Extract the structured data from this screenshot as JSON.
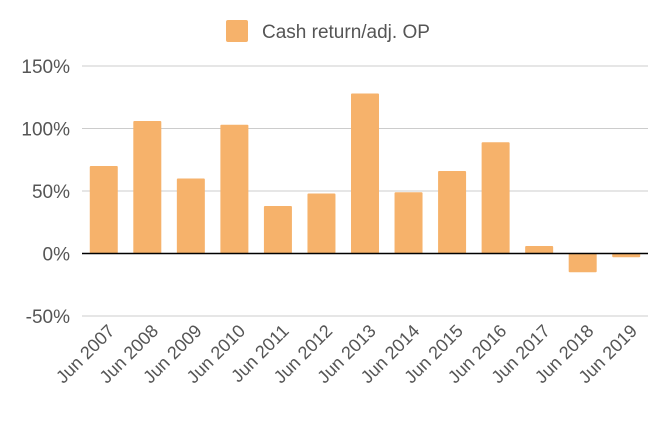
{
  "chart_data": {
    "type": "bar",
    "categories": [
      "Jun 2007",
      "Jun 2008",
      "Jun 2009",
      "Jun 2010",
      "Jun 2011",
      "Jun 2012",
      "Jun 2013",
      "Jun 2014",
      "Jun 2015",
      "Jun 2016",
      "Jun 2017",
      "Jun 2018",
      "Jun 2019"
    ],
    "series": [
      {
        "name": "Cash return/adj. OP",
        "values": [
          70,
          106,
          60,
          103,
          38,
          48,
          128,
          49,
          66,
          89,
          6,
          -15,
          -3
        ],
        "color": "#f6b26b"
      }
    ],
    "ylim": [
      -50,
      150
    ],
    "yticks": [
      -50,
      0,
      50,
      100,
      150
    ],
    "ytick_labels": [
      "-50%",
      "0%",
      "50%",
      "100%",
      "150%"
    ],
    "y_unit": "%",
    "grid": true,
    "legend_position": "top-center",
    "colors": {
      "bar": "#f6b26b",
      "grid": "#cccccc",
      "zero_line": "#000000",
      "text": "#555555"
    }
  }
}
